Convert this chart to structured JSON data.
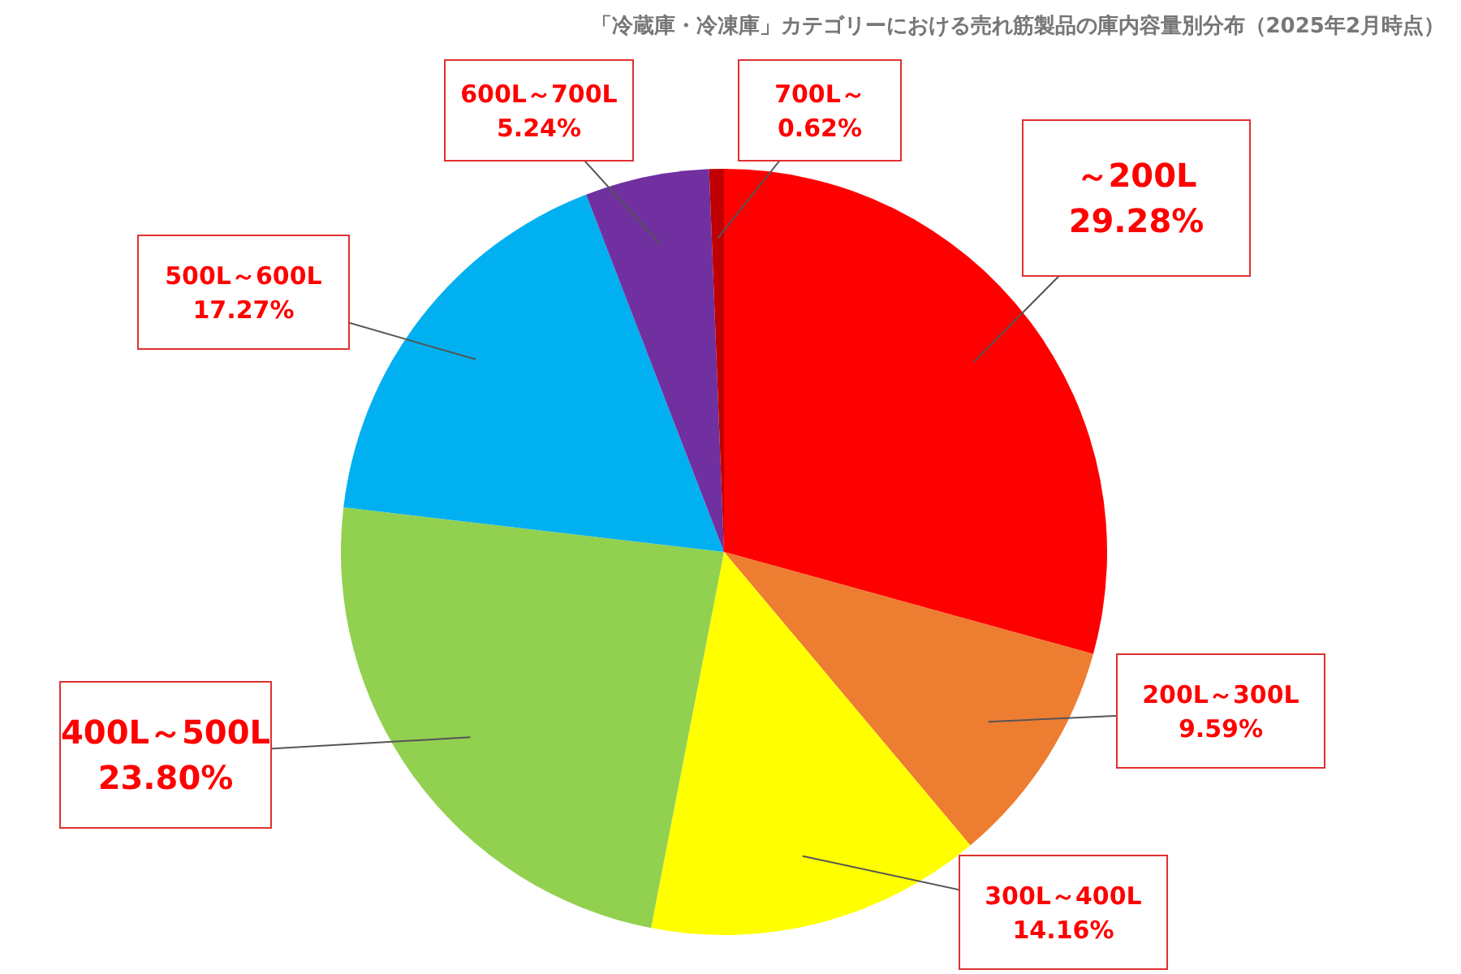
{
  "chart_data": {
    "type": "pie",
    "title": "「冷蔵庫・冷凍庫」カテゴリーにおける売れ筋製品の庫内容量別分布（2025年2月時点）",
    "categories": [
      "～200L",
      "200L～300L",
      "300L～400L",
      "400L～500L",
      "500L～600L",
      "600L～700L",
      "700L～"
    ],
    "values": [
      29.28,
      9.59,
      14.16,
      23.8,
      17.27,
      5.24,
      0.62
    ],
    "value_labels": [
      "29.28%",
      "9.59%",
      "14.16%",
      "23.80%",
      "17.27%",
      "5.24%",
      "0.62%"
    ],
    "colors": [
      "#ff0000",
      "#ed7d31",
      "#ffff00",
      "#92d050",
      "#00b0f0",
      "#7030a0",
      "#c00000"
    ]
  }
}
